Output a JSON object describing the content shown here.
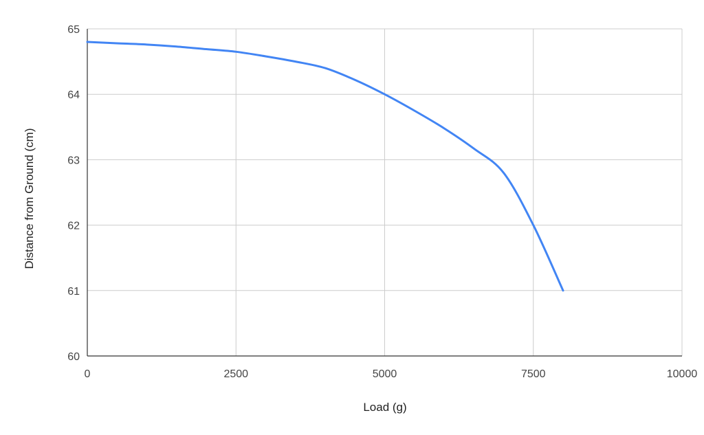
{
  "chart_data": {
    "type": "line",
    "title": "",
    "xlabel": "Load (g)",
    "ylabel": "Distance from Ground (cm)",
    "xlim": [
      0,
      10000
    ],
    "ylim": [
      60,
      65
    ],
    "xticks": [
      0,
      2500,
      5000,
      7500,
      10000
    ],
    "yticks": [
      60,
      61,
      62,
      63,
      64,
      65
    ],
    "grid": true,
    "legend": "none",
    "colors": {
      "series": "#4285f4",
      "grid": "#cccccc",
      "axis": "#333333"
    },
    "series": [
      {
        "x": [
          0,
          500,
          1000,
          1500,
          2000,
          2500,
          3000,
          3500,
          4000,
          4500,
          5000,
          5500,
          6000,
          6500,
          7000,
          7500,
          8000
        ],
        "y": [
          64.8,
          64.78,
          64.76,
          64.73,
          64.69,
          64.65,
          64.58,
          64.5,
          64.4,
          64.22,
          64.0,
          63.75,
          63.48,
          63.17,
          62.8,
          62.0,
          61.0
        ]
      }
    ]
  }
}
